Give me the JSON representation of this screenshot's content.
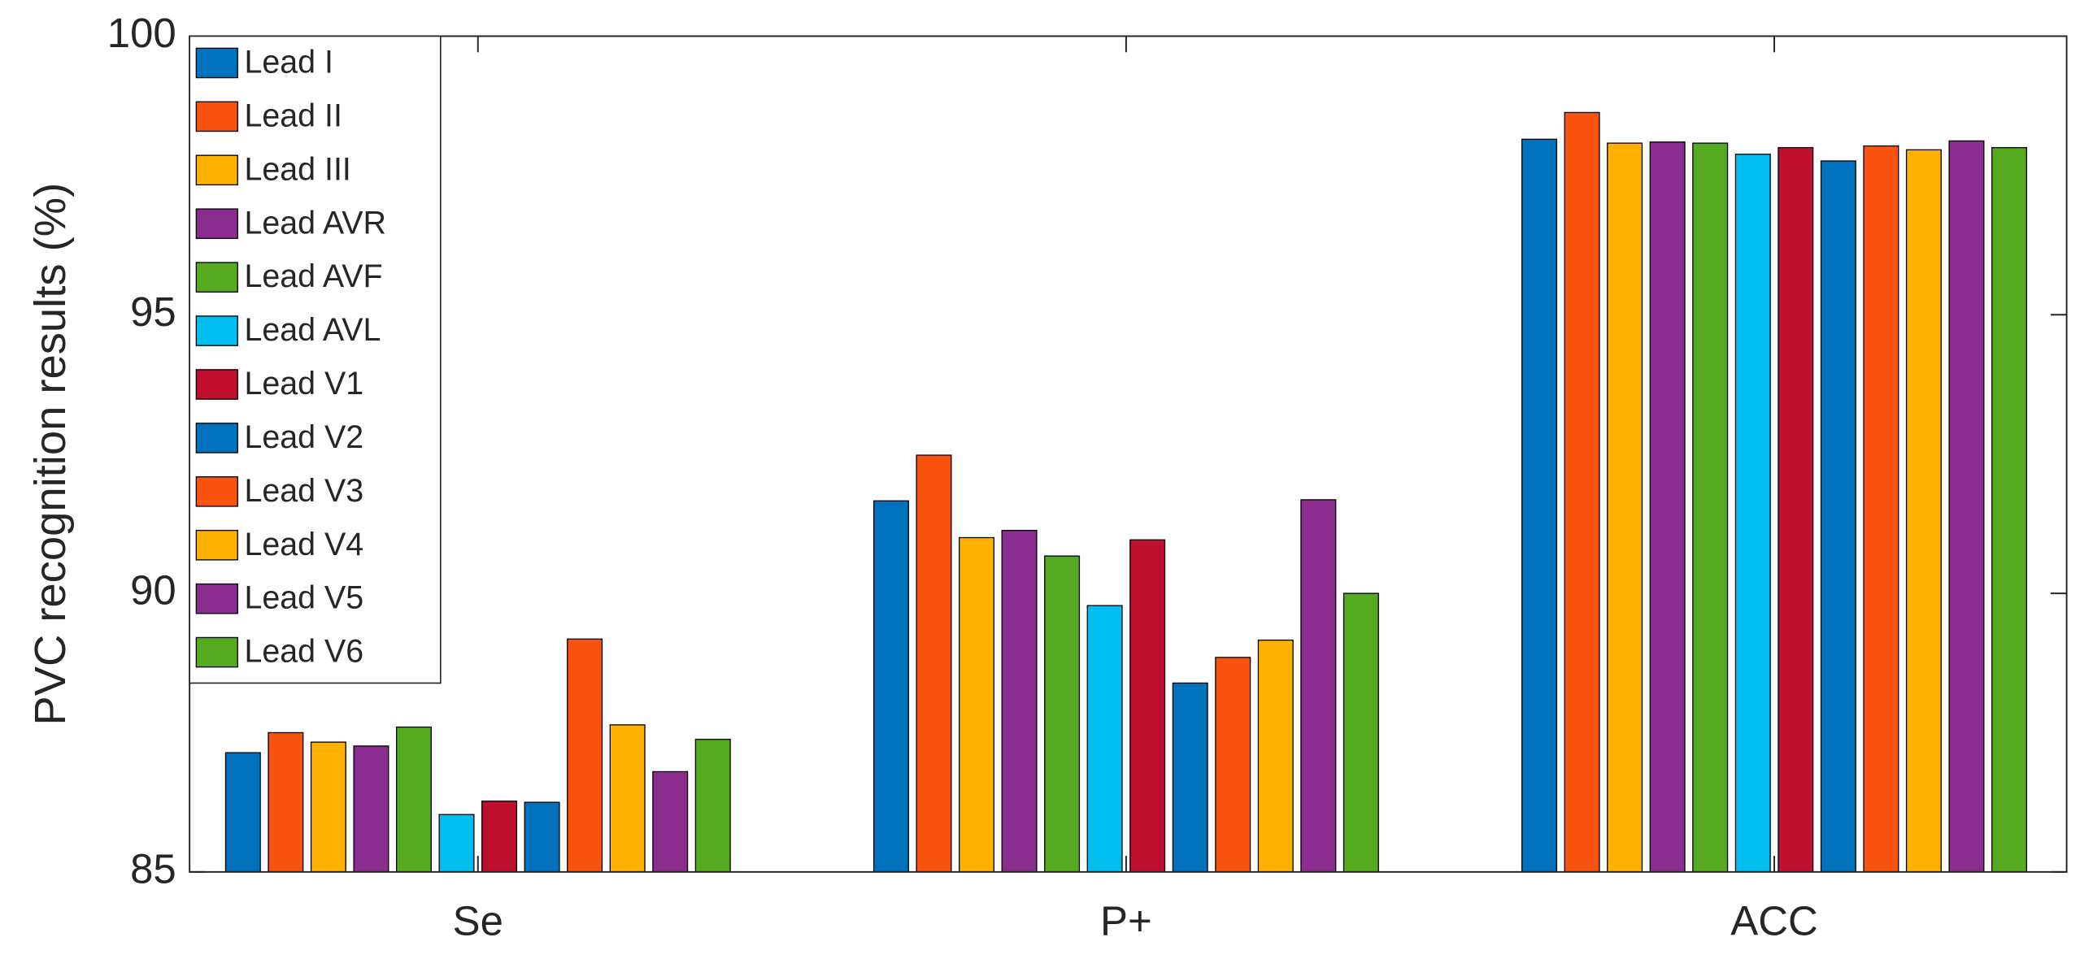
{
  "chart_data": {
    "type": "bar",
    "y_label": "PVC recognition results (%)",
    "categories": [
      "Se",
      "P+",
      "ACC"
    ],
    "ylim": [
      85,
      100
    ],
    "yticks": [
      85,
      90,
      95,
      100
    ],
    "legend": "upper left",
    "series": [
      {
        "name": "Lead I",
        "color": "#0072BD",
        "values": [
          87.14,
          91.66,
          98.15
        ]
      },
      {
        "name": "Lead II",
        "color": "#F9530F",
        "values": [
          87.5,
          92.48,
          98.63
        ]
      },
      {
        "name": "Lead III",
        "color": "#FFB000",
        "values": [
          87.33,
          91.0,
          98.08
        ]
      },
      {
        "name": "Lead AVR",
        "color": "#8B2D8E",
        "values": [
          87.26,
          91.13,
          98.1
        ]
      },
      {
        "name": "Lead AVF",
        "color": "#55AA1F",
        "values": [
          87.6,
          90.67,
          98.08
        ]
      },
      {
        "name": "Lead AVL",
        "color": "#00BEEF",
        "values": [
          86.03,
          89.78,
          97.88
        ]
      },
      {
        "name": "Lead V1",
        "color": "#C0102F",
        "values": [
          86.27,
          90.96,
          98.0
        ]
      },
      {
        "name": "Lead V2",
        "color": "#0072BD",
        "values": [
          86.25,
          88.39,
          97.76
        ]
      },
      {
        "name": "Lead V3",
        "color": "#F9530F",
        "values": [
          89.18,
          88.85,
          98.03
        ]
      },
      {
        "name": "Lead V4",
        "color": "#FFB000",
        "values": [
          87.64,
          89.16,
          97.96
        ]
      },
      {
        "name": "Lead V5",
        "color": "#8B2D8E",
        "values": [
          86.8,
          91.68,
          98.12
        ]
      },
      {
        "name": "Lead V6",
        "color": "#55AA1F",
        "values": [
          87.38,
          90.0,
          98.0
        ]
      }
    ]
  }
}
